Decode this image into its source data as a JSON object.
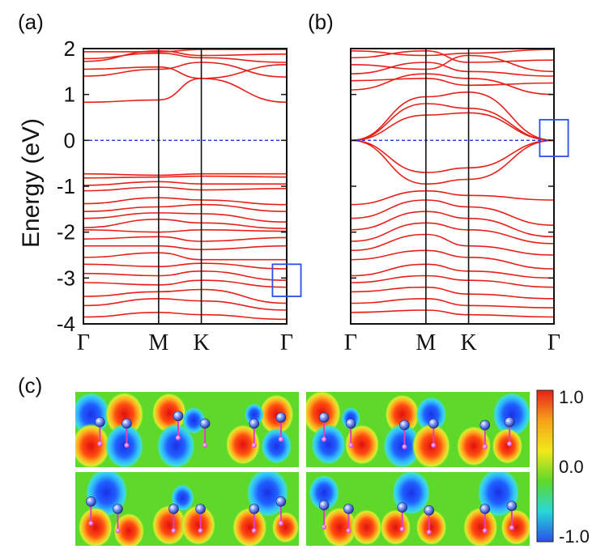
{
  "figure": {
    "panel_labels": {
      "a": "(a)",
      "b": "(b)",
      "c": "(c)"
    }
  },
  "chart_data": [
    {
      "id": "a",
      "type": "line",
      "title": "(a)",
      "xlabel": "",
      "ylabel": "Energy (eV)",
      "ylim": [
        -4,
        2
      ],
      "yticks": [
        2,
        1,
        0,
        -1,
        -2,
        -3,
        -4
      ],
      "ytick_labels": [
        "2",
        "1",
        "0",
        "-1",
        "-2",
        "-3",
        "-4"
      ],
      "kpoints": [
        {
          "label": "Γ",
          "pos": 0.0
        },
        {
          "label": "M",
          "pos": 0.37
        },
        {
          "label": "K",
          "pos": 0.58
        },
        {
          "label": "Γ",
          "pos": 1.0
        }
      ],
      "fermi_level": 0,
      "highlight_box": {
        "k_min": 0.93,
        "k_max": 1.07,
        "e_min": -3.4,
        "e_max": -2.7
      },
      "band_color": "#e8201a",
      "bands": [
        {
          "values": [
            1.93,
            1.93,
            1.98,
            1.98
          ]
        },
        {
          "values": [
            1.78,
            1.9,
            1.8,
            1.7
          ]
        },
        {
          "values": [
            1.72,
            1.95,
            1.85,
            1.88
          ]
        },
        {
          "values": [
            1.55,
            1.6,
            1.35,
            1.65
          ]
        },
        {
          "values": [
            1.4,
            1.55,
            1.7,
            1.38
          ]
        },
        {
          "values": [
            0.83,
            0.88,
            1.35,
            0.83
          ]
        },
        {
          "values": [
            -0.73,
            -0.76,
            -0.73,
            -0.73
          ]
        },
        {
          "values": [
            -0.82,
            -0.8,
            -0.78,
            -0.8
          ]
        },
        {
          "values": [
            -0.98,
            -0.9,
            -0.95,
            -0.95
          ]
        },
        {
          "values": [
            -1.1,
            -1.02,
            -1.08,
            -1.05
          ]
        },
        {
          "values": [
            -1.38,
            -1.25,
            -1.3,
            -1.4
          ]
        },
        {
          "values": [
            -1.55,
            -1.45,
            -1.4,
            -1.55
          ]
        },
        {
          "values": [
            -1.7,
            -1.58,
            -1.6,
            -1.78
          ]
        },
        {
          "values": [
            -1.9,
            -1.72,
            -1.8,
            -1.92
          ]
        },
        {
          "values": [
            -1.95,
            -2.0,
            -1.95,
            -1.98
          ]
        },
        {
          "values": [
            -2.15,
            -2.1,
            -2.2,
            -2.12
          ]
        },
        {
          "values": [
            -2.3,
            -2.3,
            -2.38,
            -2.3
          ]
        },
        {
          "values": [
            -2.55,
            -2.45,
            -2.6,
            -2.6
          ]
        },
        {
          "values": [
            -2.7,
            -2.75,
            -2.68,
            -2.8
          ]
        },
        {
          "values": [
            -2.9,
            -2.95,
            -2.85,
            -3.05
          ]
        },
        {
          "values": [
            -3.1,
            -3.15,
            -3.05,
            -3.2
          ]
        },
        {
          "values": [
            -3.4,
            -3.3,
            -3.25,
            -3.55
          ]
        },
        {
          "values": [
            -3.6,
            -3.45,
            -3.5,
            -3.7
          ]
        },
        {
          "values": [
            -3.85,
            -3.75,
            -3.8,
            -3.9
          ]
        }
      ]
    },
    {
      "id": "b",
      "type": "line",
      "title": "(b)",
      "xlabel": "",
      "ylabel": "",
      "ylim": [
        -4,
        2
      ],
      "yticks": [
        2,
        1,
        0,
        -1,
        -2,
        -3,
        -4
      ],
      "kpoints": [
        {
          "label": "Γ",
          "pos": 0.0
        },
        {
          "label": "M",
          "pos": 0.37
        },
        {
          "label": "K",
          "pos": 0.58
        },
        {
          "label": "Γ",
          "pos": 1.0
        }
      ],
      "fermi_level": 0,
      "highlight_box": {
        "k_min": 0.93,
        "k_max": 1.07,
        "e_min": -0.35,
        "e_max": 0.45
      },
      "band_color": "#e8201a",
      "bands": [
        {
          "values": [
            1.95,
            1.85,
            1.9,
            1.98
          ]
        },
        {
          "values": [
            1.8,
            1.95,
            1.7,
            1.75
          ]
        },
        {
          "values": [
            1.65,
            1.55,
            1.85,
            1.5
          ]
        },
        {
          "values": [
            1.45,
            1.7,
            1.5,
            1.4
          ]
        },
        {
          "values": [
            1.3,
            1.35,
            1.2,
            1.25
          ]
        },
        {
          "values": [
            1.1,
            1.45,
            1.35,
            1.0
          ]
        },
        {
          "values": [
            0.0,
            0.95,
            1.05,
            0.0
          ]
        },
        {
          "values": [
            0.0,
            0.8,
            0.7,
            0.0
          ]
        },
        {
          "values": [
            0.0,
            0.55,
            0.6,
            0.0
          ]
        },
        {
          "values": [
            0.0,
            -0.95,
            -0.85,
            0.0
          ]
        },
        {
          "values": [
            0.0,
            -0.7,
            -0.6,
            0.0
          ]
        },
        {
          "values": [
            -1.4,
            -1.1,
            -1.2,
            -1.3
          ]
        },
        {
          "values": [
            -1.7,
            -1.3,
            -1.45,
            -1.85
          ]
        },
        {
          "values": [
            -1.95,
            -1.55,
            -1.7,
            -2.1
          ]
        },
        {
          "values": [
            -2.2,
            -1.8,
            -1.95,
            -2.25
          ]
        },
        {
          "values": [
            -2.4,
            -2.05,
            -2.3,
            -2.5
          ]
        },
        {
          "values": [
            -2.6,
            -2.4,
            -2.55,
            -2.8
          ]
        },
        {
          "values": [
            -2.95,
            -2.7,
            -2.85,
            -3.0
          ]
        },
        {
          "values": [
            -3.1,
            -2.95,
            -3.05,
            -3.2
          ]
        },
        {
          "values": [
            -3.3,
            -3.2,
            -3.35,
            -3.45
          ]
        },
        {
          "values": [
            -3.55,
            -3.45,
            -3.6,
            -3.65
          ]
        },
        {
          "values": [
            -3.75,
            -3.7,
            -3.8,
            -3.85
          ]
        }
      ]
    },
    {
      "id": "c",
      "type": "heatmap",
      "title": "(c)",
      "colorbar": {
        "min": -1.0,
        "max": 1.0,
        "tick_labels": [
          "1.0",
          "0.0",
          "-1.0"
        ],
        "colors": [
          "#e8201a",
          "#f6a21a",
          "#f2e81a",
          "#5ed82a",
          "#27d8d8",
          "#2a4fe8"
        ]
      },
      "tiles": [
        {
          "id": "top-left",
          "lobes": [
            {
              "x": 0.07,
              "y": 0.3,
              "sign": -1,
              "s": 1.0
            },
            {
              "x": 0.07,
              "y": 0.72,
              "sign": 1,
              "s": 1.0
            },
            {
              "x": 0.22,
              "y": 0.3,
              "sign": 1,
              "s": 1.0
            },
            {
              "x": 0.22,
              "y": 0.72,
              "sign": -1,
              "s": 1.0
            },
            {
              "x": 0.42,
              "y": 0.28,
              "sign": 1,
              "s": 0.9
            },
            {
              "x": 0.45,
              "y": 0.72,
              "sign": -1,
              "s": 1.0
            },
            {
              "x": 0.53,
              "y": 0.38,
              "sign": -1,
              "s": 0.6
            },
            {
              "x": 0.75,
              "y": 0.7,
              "sign": 1,
              "s": 0.9
            },
            {
              "x": 0.9,
              "y": 0.3,
              "sign": 1,
              "s": 0.9
            },
            {
              "x": 0.9,
              "y": 0.72,
              "sign": -1,
              "s": 0.8
            },
            {
              "x": 0.8,
              "y": 0.3,
              "sign": -1,
              "s": 0.5
            }
          ],
          "atoms": [
            {
              "x": 0.11,
              "y": 0.4
            },
            {
              "x": 0.23,
              "y": 0.42
            },
            {
              "x": 0.46,
              "y": 0.32
            },
            {
              "x": 0.58,
              "y": 0.42
            },
            {
              "x": 0.8,
              "y": 0.42
            },
            {
              "x": 0.92,
              "y": 0.34
            }
          ]
        },
        {
          "id": "top-right",
          "lobes": [
            {
              "x": 0.07,
              "y": 0.28,
              "sign": 1,
              "s": 1.0
            },
            {
              "x": 0.1,
              "y": 0.7,
              "sign": -1,
              "s": 0.9
            },
            {
              "x": 0.25,
              "y": 0.7,
              "sign": 1,
              "s": 0.9
            },
            {
              "x": 0.2,
              "y": 0.35,
              "sign": -1,
              "s": 0.5
            },
            {
              "x": 0.43,
              "y": 0.3,
              "sign": 1,
              "s": 0.9
            },
            {
              "x": 0.43,
              "y": 0.72,
              "sign": -1,
              "s": 1.0
            },
            {
              "x": 0.56,
              "y": 0.3,
              "sign": -1,
              "s": 0.8
            },
            {
              "x": 0.56,
              "y": 0.72,
              "sign": 1,
              "s": 1.0
            },
            {
              "x": 0.75,
              "y": 0.72,
              "sign": 1,
              "s": 0.9
            },
            {
              "x": 0.92,
              "y": 0.3,
              "sign": -1,
              "s": 1.0
            },
            {
              "x": 0.9,
              "y": 0.72,
              "sign": 1,
              "s": 0.8
            }
          ],
          "atoms": [
            {
              "x": 0.08,
              "y": 0.34
            },
            {
              "x": 0.2,
              "y": 0.42
            },
            {
              "x": 0.44,
              "y": 0.44
            },
            {
              "x": 0.57,
              "y": 0.42
            },
            {
              "x": 0.8,
              "y": 0.44
            },
            {
              "x": 0.91,
              "y": 0.4
            }
          ]
        },
        {
          "id": "bottom-left",
          "lobes": [
            {
              "x": 0.14,
              "y": 0.28,
              "sign": -1,
              "s": 1.1
            },
            {
              "x": 0.09,
              "y": 0.75,
              "sign": 1,
              "s": 0.9
            },
            {
              "x": 0.24,
              "y": 0.8,
              "sign": 1,
              "s": 0.8
            },
            {
              "x": 0.42,
              "y": 0.72,
              "sign": 1,
              "s": 0.9
            },
            {
              "x": 0.55,
              "y": 0.72,
              "sign": 1,
              "s": 0.9
            },
            {
              "x": 0.48,
              "y": 0.35,
              "sign": -1,
              "s": 0.6
            },
            {
              "x": 0.86,
              "y": 0.28,
              "sign": -1,
              "s": 1.1
            },
            {
              "x": 0.78,
              "y": 0.75,
              "sign": 1,
              "s": 0.9
            },
            {
              "x": 0.94,
              "y": 0.75,
              "sign": 1,
              "s": 0.7
            }
          ],
          "atoms": [
            {
              "x": 0.07,
              "y": 0.4
            },
            {
              "x": 0.19,
              "y": 0.5
            },
            {
              "x": 0.44,
              "y": 0.5
            },
            {
              "x": 0.56,
              "y": 0.5
            },
            {
              "x": 0.8,
              "y": 0.5
            },
            {
              "x": 0.92,
              "y": 0.4
            }
          ]
        },
        {
          "id": "bottom-right",
          "lobes": [
            {
              "x": 0.08,
              "y": 0.28,
              "sign": -1,
              "s": 0.8
            },
            {
              "x": 0.15,
              "y": 0.75,
              "sign": 1,
              "s": 0.9
            },
            {
              "x": 0.27,
              "y": 0.75,
              "sign": 1,
              "s": 0.8
            },
            {
              "x": 0.47,
              "y": 0.28,
              "sign": -1,
              "s": 1.0
            },
            {
              "x": 0.4,
              "y": 0.75,
              "sign": 1,
              "s": 0.8
            },
            {
              "x": 0.56,
              "y": 0.75,
              "sign": 1,
              "s": 0.8
            },
            {
              "x": 0.86,
              "y": 0.28,
              "sign": -1,
              "s": 1.1
            },
            {
              "x": 0.78,
              "y": 0.75,
              "sign": 1,
              "s": 0.9
            },
            {
              "x": 0.94,
              "y": 0.75,
              "sign": 1,
              "s": 0.8
            }
          ],
          "atoms": [
            {
              "x": 0.08,
              "y": 0.45
            },
            {
              "x": 0.19,
              "y": 0.5
            },
            {
              "x": 0.43,
              "y": 0.48
            },
            {
              "x": 0.55,
              "y": 0.52
            },
            {
              "x": 0.8,
              "y": 0.5
            },
            {
              "x": 0.92,
              "y": 0.46
            }
          ]
        }
      ]
    }
  ]
}
